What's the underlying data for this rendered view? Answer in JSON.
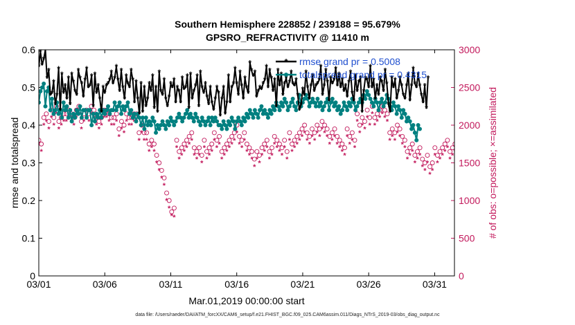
{
  "chart_data": {
    "type": "line",
    "title": "Southern Hemisphere 228852 / 239188 = 95.679%",
    "subtitle": "GPSRO_REFRACTIVITY @ 11410 m",
    "xlabel": "Mar.01,2019 00:00:00 start",
    "ylabel": "rmse and totalspread",
    "y2label": "# of obs: o=possible; ×=assimilated",
    "footnote": "data file: /Users/raeder/DAI/ATM_forcXX/CAM6_setup/f.e21.FHIST_BGC.f09_025.CAM6assim.011/Diags_NTrS_2019-03/obs_diag_output.nc",
    "xlim": [
      0,
      31.5
    ],
    "ylim": [
      0,
      0.6
    ],
    "y2lim": [
      0,
      3000
    ],
    "x_ticks": [
      0,
      5,
      10,
      15,
      20,
      25,
      30
    ],
    "x_tick_labels": [
      "03/01",
      "03/06",
      "03/11",
      "03/16",
      "03/21",
      "03/26",
      "03/31"
    ],
    "y_ticks": [
      0,
      0.1,
      0.2,
      0.3,
      0.4,
      0.5,
      0.6
    ],
    "y_tick_labels": [
      "0",
      "0.1",
      "0.2",
      "0.3",
      "0.4",
      "0.5",
      "0.6"
    ],
    "y2_ticks": [
      0,
      500,
      1000,
      1500,
      2000,
      2500,
      3000
    ],
    "y2_tick_labels": [
      "0",
      "500",
      "1000",
      "1500",
      "2000",
      "2500",
      "3000"
    ],
    "legend": [
      "rmse grand pr = 0.5008",
      "totalspread grand pr = 0.4315"
    ],
    "colors": {
      "rmse": "#000000",
      "totalspread": "#008080",
      "obs": "#c2185b",
      "axis": "#000000"
    },
    "series": [
      {
        "name": "rmse",
        "color": "#000000",
        "marker": "star",
        "values": [
          0.555,
          0.595,
          0.56,
          0.575,
          0.6,
          0.525,
          0.545,
          0.48,
          0.485,
          0.515,
          0.455,
          0.48,
          0.55,
          0.44,
          0.535,
          0.485,
          0.505,
          0.47,
          0.525,
          0.455,
          0.535,
          0.515,
          0.49,
          0.48,
          0.545,
          0.525,
          0.51,
          0.475,
          0.52,
          0.55,
          0.5,
          0.505,
          0.53,
          0.45,
          0.535,
          0.485,
          0.505,
          0.47,
          0.435,
          0.5,
          0.485,
          0.505,
          0.51,
          0.52,
          0.54,
          0.51,
          0.525,
          0.555,
          0.52,
          0.49,
          0.545,
          0.5,
          0.47,
          0.53,
          0.51,
          0.5,
          0.545,
          0.52,
          0.46,
          0.515,
          0.47,
          0.43,
          0.51,
          0.435,
          0.5,
          0.45,
          0.47,
          0.51,
          0.49,
          0.53,
          0.445,
          0.5,
          0.435,
          0.54,
          0.49,
          0.48,
          0.52,
          0.47,
          0.45,
          0.475,
          0.51,
          0.5,
          0.52,
          0.46,
          0.5,
          0.49,
          0.46,
          0.525,
          0.495,
          0.5,
          0.53,
          0.445,
          0.535,
          0.47,
          0.49,
          0.505,
          0.53,
          0.45,
          0.54,
          0.5,
          0.485,
          0.51,
          0.475,
          0.455,
          0.5,
          0.46,
          0.44,
          0.47,
          0.5,
          0.485,
          0.425,
          0.47,
          0.5,
          0.43,
          0.46,
          0.53,
          0.46,
          0.5,
          0.51,
          0.55,
          0.51,
          0.48,
          0.54,
          0.505,
          0.47,
          0.525,
          0.5,
          0.485,
          0.565,
          0.545,
          0.53,
          0.54,
          0.475,
          0.49,
          0.5,
          0.495,
          0.51,
          0.52,
          0.555,
          0.5,
          0.545,
          0.525,
          0.49,
          0.52,
          0.45,
          0.545,
          0.505,
          0.535,
          0.48,
          0.51,
          0.525,
          0.5,
          0.515,
          0.54,
          0.51,
          0.505,
          0.52,
          0.48,
          0.44,
          0.455,
          0.495,
          0.48,
          0.54,
          0.5,
          0.47,
          0.505,
          0.53,
          0.49,
          0.505,
          0.51,
          0.52,
          0.555,
          0.48,
          0.505,
          0.545,
          0.515,
          0.465,
          0.525,
          0.51,
          0.52,
          0.55,
          0.505,
          0.535,
          0.5,
          0.52,
          0.49,
          0.505,
          0.475,
          0.515,
          0.54,
          0.485,
          0.465,
          0.53,
          0.49,
          0.515,
          0.525,
          0.435,
          0.49,
          0.525,
          0.52,
          0.5,
          0.555,
          0.5,
          0.52,
          0.47,
          0.505,
          0.48,
          0.525,
          0.515,
          0.49,
          0.545,
          0.51,
          0.455,
          0.435,
          0.525,
          0.5,
          0.52,
          0.47,
          0.49,
          0.525,
          0.505,
          0.48,
          0.47,
          0.505,
          0.535,
          0.465,
          0.505,
          0.55,
          0.51,
          0.5,
          0.535,
          0.505,
          0.48,
          0.46,
          0.505,
          0.445,
          0.525
        ],
        "x_start": 0,
        "x_step": 0.125
      },
      {
        "name": "totalspread",
        "color": "#008080",
        "marker": "circle",
        "values": [
          0.46,
          0.49,
          0.5,
          0.51,
          0.45,
          0.49,
          0.5,
          0.44,
          0.47,
          0.43,
          0.44,
          0.46,
          0.43,
          0.44,
          0.42,
          0.46,
          0.44,
          0.45,
          0.42,
          0.44,
          0.41,
          0.43,
          0.42,
          0.44,
          0.43,
          0.45,
          0.42,
          0.44,
          0.44,
          0.42,
          0.44,
          0.44,
          0.4,
          0.43,
          0.41,
          0.43,
          0.42,
          0.44,
          0.42,
          0.44,
          0.43,
          0.44,
          0.45,
          0.43,
          0.44,
          0.44,
          0.46,
          0.44,
          0.45,
          0.46,
          0.43,
          0.45,
          0.44,
          0.45,
          0.46,
          0.43,
          0.44,
          0.42,
          0.43,
          0.41,
          0.43,
          0.42,
          0.4,
          0.42,
          0.39,
          0.42,
          0.4,
          0.41,
          0.4,
          0.42,
          0.41,
          0.38,
          0.4,
          0.39,
          0.4,
          0.41,
          0.4,
          0.39,
          0.41,
          0.4,
          0.42,
          0.41,
          0.4,
          0.41,
          0.42,
          0.43,
          0.42,
          0.41,
          0.42,
          0.43,
          0.44,
          0.42,
          0.43,
          0.42,
          0.41,
          0.43,
          0.42,
          0.41,
          0.4,
          0.42,
          0.41,
          0.4,
          0.41,
          0.42,
          0.4,
          0.42,
          0.41,
          0.42,
          0.41,
          0.4,
          0.4,
          0.39,
          0.41,
          0.4,
          0.39,
          0.41,
          0.4,
          0.42,
          0.41,
          0.39,
          0.41,
          0.42,
          0.41,
          0.4,
          0.42,
          0.41,
          0.43,
          0.42,
          0.44,
          0.43,
          0.42,
          0.44,
          0.43,
          0.42,
          0.44,
          0.45,
          0.43,
          0.44,
          0.43,
          0.42,
          0.44,
          0.43,
          0.45,
          0.44,
          0.46,
          0.45,
          0.44,
          0.46,
          0.45,
          0.47,
          0.46,
          0.44,
          0.45,
          0.46,
          0.47,
          0.45,
          0.44,
          0.46,
          0.48,
          0.45,
          0.46,
          0.47,
          0.48,
          0.47,
          0.45,
          0.46,
          0.47,
          0.46,
          0.45,
          0.47,
          0.45,
          0.46,
          0.44,
          0.45,
          0.46,
          0.47,
          0.44,
          0.46,
          0.47,
          0.45,
          0.46,
          0.44,
          0.45,
          0.43,
          0.44,
          0.46,
          0.45,
          0.44,
          0.46,
          0.45,
          0.47,
          0.46,
          0.44,
          0.45,
          0.46,
          0.47,
          0.46,
          0.48,
          0.47,
          0.49,
          0.48,
          0.47,
          0.46,
          0.45,
          0.47,
          0.46,
          0.44,
          0.46,
          0.47,
          0.45,
          0.46,
          0.48,
          0.47,
          0.45,
          0.44,
          0.46,
          0.45,
          0.43,
          0.45,
          0.44,
          0.42,
          0.44,
          0.43,
          0.41,
          0.42,
          0.41,
          0.39,
          0.4,
          0.38,
          0.36,
          0.4,
          0.39
        ],
        "x_start": 0,
        "x_step": 0.125
      },
      {
        "name": "obs_possible",
        "color": "#c2185b",
        "marker": "open-circle",
        "axis": "right",
        "values": [
          1800,
          1750,
          2100,
          2150,
          2050,
          2200,
          2100,
          2250,
          2050,
          2100,
          2150,
          2150,
          2200,
          2150,
          2100,
          2200,
          2250,
          2050,
          2150,
          2200,
          2150,
          2250,
          2200,
          2100,
          2050,
          2100,
          2200,
          2200,
          2150,
          2100,
          2100,
          2150,
          1950,
          2050,
          2000,
          2150,
          2100,
          2100,
          2150,
          2150,
          1900,
          2000,
          1900,
          1900,
          1750,
          1800,
          1750,
          1600,
          1500,
          1400,
          1300,
          1100,
          1000,
          850,
          900,
          1800,
          1650,
          1700,
          1750,
          1800,
          1850,
          1900,
          1700,
          1650,
          1700,
          1600,
          1800,
          1650,
          1700,
          1750,
          1900,
          1800,
          1850,
          1650,
          1700,
          1750,
          1800,
          1850,
          1900,
          2000,
          1850,
          1800,
          1900,
          1750,
          1700,
          1650,
          1550,
          1650,
          1600,
          1700,
          1750,
          1800,
          1650,
          1700,
          1850,
          1800,
          1750,
          1700,
          1800,
          1650,
          1900,
          1750,
          1800,
          1850,
          1900,
          1950,
          2000,
          1900,
          1850,
          1950,
          1900,
          2000,
          1950,
          2050,
          2000,
          1950,
          1850,
          1900,
          1950,
          1850,
          1800,
          1750,
          1700,
          1950,
          1850,
          1900,
          1800,
          2150,
          2000,
          2100,
          2050,
          2200,
          2100,
          2250,
          2100,
          2150,
          2200,
          2250,
          2200,
          2150,
          1900,
          1950,
          1900,
          2000,
          1950,
          1850,
          1800,
          1650,
          1700,
          1750,
          1600,
          1650,
          1700,
          1550,
          1500,
          1600,
          1450,
          1500,
          1700,
          1600,
          1650,
          1700,
          1750,
          1800,
          1650,
          1700,
          1750,
          1750
        ],
        "x_start": 0,
        "x_step": 0.19
      },
      {
        "name": "obs_assimilated",
        "color": "#c2185b",
        "marker": "asterisk",
        "axis": "right",
        "values": [
          1750,
          1650,
          2000,
          2050,
          1950,
          2100,
          2000,
          2150,
          1950,
          2000,
          2050,
          2050,
          2100,
          2050,
          2000,
          2100,
          2150,
          1950,
          2050,
          2100,
          2050,
          2150,
          2100,
          2000,
          1950,
          2000,
          2100,
          2100,
          2050,
          2000,
          2000,
          2050,
          1850,
          1950,
          1900,
          2050,
          2000,
          2000,
          2050,
          2050,
          1800,
          1900,
          1800,
          1800,
          1650,
          1700,
          1650,
          1500,
          1400,
          1300,
          1200,
          1000,
          900,
          800,
          780,
          1700,
          1550,
          1600,
          1650,
          1700,
          1750,
          1800,
          1600,
          1550,
          1600,
          1500,
          1700,
          1550,
          1600,
          1650,
          1800,
          1700,
          1750,
          1550,
          1600,
          1650,
          1700,
          1750,
          1800,
          1900,
          1750,
          1700,
          1800,
          1650,
          1600,
          1550,
          1450,
          1550,
          1500,
          1600,
          1650,
          1700,
          1550,
          1600,
          1750,
          1700,
          1650,
          1600,
          1700,
          1550,
          1800,
          1650,
          1700,
          1750,
          1800,
          1850,
          1900,
          1800,
          1750,
          1850,
          1800,
          1900,
          1850,
          1950,
          1900,
          1850,
          1750,
          1800,
          1850,
          1750,
          1700,
          1650,
          1600,
          1850,
          1750,
          1800,
          1700,
          2050,
          1900,
          2000,
          1950,
          2100,
          2000,
          2150,
          2000,
          2050,
          2100,
          2150,
          2100,
          2050,
          1800,
          1850,
          1800,
          1900,
          1850,
          1750,
          1700,
          1550,
          1600,
          1650,
          1500,
          1550,
          1600,
          1450,
          1400,
          1500,
          1350,
          1400,
          1600,
          1500,
          1550,
          1600,
          1650,
          1700,
          1550,
          1600,
          1650,
          1650
        ],
        "x_start": 0,
        "x_step": 0.19
      }
    ]
  }
}
